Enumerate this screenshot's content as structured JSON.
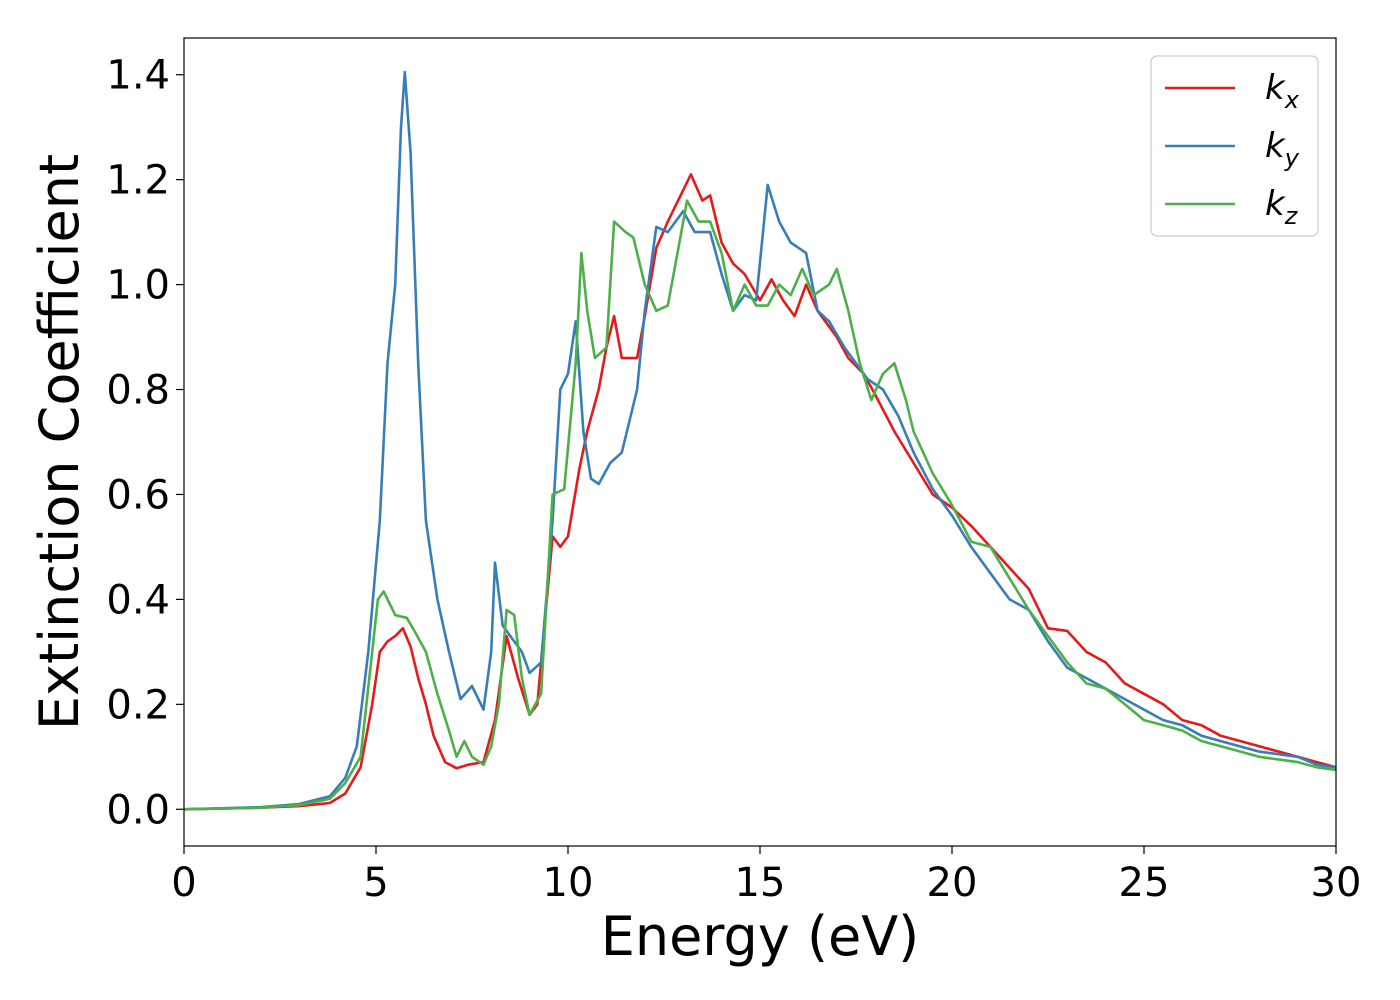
{
  "chart_data": {
    "type": "line",
    "title": "",
    "xlabel": "Energy (eV)",
    "ylabel": "Extinction Coefficient",
    "xlim": [
      0,
      30
    ],
    "ylim": [
      -0.07,
      1.47
    ],
    "xticks": [
      0,
      5,
      10,
      15,
      20,
      25,
      30
    ],
    "xtick_labels": [
      "0",
      "5",
      "10",
      "15",
      "20",
      "25",
      "30"
    ],
    "yticks": [
      0.0,
      0.2,
      0.4,
      0.6,
      0.8,
      1.0,
      1.2,
      1.4
    ],
    "ytick_labels": [
      "0.0",
      "0.2",
      "0.4",
      "0.6",
      "0.8",
      "1.0",
      "1.2",
      "1.4"
    ],
    "grid": false,
    "legend": {
      "position": "top-right",
      "entries": [
        {
          "base": "k",
          "sub": "x"
        },
        {
          "base": "k",
          "sub": "y"
        },
        {
          "base": "k",
          "sub": "z"
        }
      ]
    },
    "series": [
      {
        "name": "k_x",
        "color": "#e41a1c",
        "points": [
          [
            0,
            0
          ],
          [
            2,
            0.003
          ],
          [
            3,
            0.006
          ],
          [
            3.8,
            0.012
          ],
          [
            4.2,
            0.03
          ],
          [
            4.6,
            0.08
          ],
          [
            4.9,
            0.2
          ],
          [
            5.1,
            0.3
          ],
          [
            5.3,
            0.32
          ],
          [
            5.5,
            0.33
          ],
          [
            5.7,
            0.345
          ],
          [
            5.9,
            0.31
          ],
          [
            6.1,
            0.25
          ],
          [
            6.3,
            0.2
          ],
          [
            6.5,
            0.14
          ],
          [
            6.8,
            0.09
          ],
          [
            7.1,
            0.078
          ],
          [
            7.4,
            0.085
          ],
          [
            7.8,
            0.09
          ],
          [
            8.1,
            0.17
          ],
          [
            8.4,
            0.33
          ],
          [
            8.7,
            0.25
          ],
          [
            9.0,
            0.18
          ],
          [
            9.2,
            0.2
          ],
          [
            9.6,
            0.52
          ],
          [
            9.8,
            0.5
          ],
          [
            10.0,
            0.52
          ],
          [
            10.3,
            0.65
          ],
          [
            10.5,
            0.72
          ],
          [
            10.8,
            0.8
          ],
          [
            11.0,
            0.88
          ],
          [
            11.2,
            0.94
          ],
          [
            11.4,
            0.86
          ],
          [
            11.8,
            0.86
          ],
          [
            12.0,
            0.94
          ],
          [
            12.3,
            1.07
          ],
          [
            12.6,
            1.12
          ],
          [
            13.0,
            1.18
          ],
          [
            13.2,
            1.21
          ],
          [
            13.5,
            1.16
          ],
          [
            13.7,
            1.17
          ],
          [
            14.0,
            1.08
          ],
          [
            14.3,
            1.04
          ],
          [
            14.6,
            1.02
          ],
          [
            15.0,
            0.97
          ],
          [
            15.3,
            1.01
          ],
          [
            15.6,
            0.97
          ],
          [
            15.9,
            0.94
          ],
          [
            16.2,
            1.0
          ],
          [
            16.5,
            0.95
          ],
          [
            17.0,
            0.9
          ],
          [
            17.3,
            0.86
          ],
          [
            17.7,
            0.83
          ],
          [
            18.0,
            0.79
          ],
          [
            18.5,
            0.72
          ],
          [
            19.0,
            0.66
          ],
          [
            19.5,
            0.6
          ],
          [
            20.0,
            0.575
          ],
          [
            20.5,
            0.54
          ],
          [
            21.0,
            0.5
          ],
          [
            21.5,
            0.46
          ],
          [
            22.0,
            0.42
          ],
          [
            22.5,
            0.345
          ],
          [
            23.0,
            0.34
          ],
          [
            23.5,
            0.3
          ],
          [
            24.0,
            0.28
          ],
          [
            24.5,
            0.24
          ],
          [
            25.0,
            0.22
          ],
          [
            25.5,
            0.2
          ],
          [
            26.0,
            0.17
          ],
          [
            26.5,
            0.16
          ],
          [
            27.0,
            0.14
          ],
          [
            28.0,
            0.12
          ],
          [
            29.0,
            0.1
          ],
          [
            29.5,
            0.09
          ],
          [
            30.0,
            0.08
          ]
        ]
      },
      {
        "name": "k_y",
        "color": "#377eb8",
        "points": [
          [
            0,
            0
          ],
          [
            2,
            0.004
          ],
          [
            3,
            0.01
          ],
          [
            3.8,
            0.025
          ],
          [
            4.2,
            0.06
          ],
          [
            4.5,
            0.12
          ],
          [
            4.8,
            0.3
          ],
          [
            5.1,
            0.55
          ],
          [
            5.3,
            0.85
          ],
          [
            5.5,
            1.0
          ],
          [
            5.65,
            1.3
          ],
          [
            5.75,
            1.405
          ],
          [
            5.9,
            1.25
          ],
          [
            6.1,
            0.85
          ],
          [
            6.3,
            0.55
          ],
          [
            6.6,
            0.4
          ],
          [
            6.9,
            0.3
          ],
          [
            7.2,
            0.21
          ],
          [
            7.5,
            0.235
          ],
          [
            7.8,
            0.19
          ],
          [
            8.0,
            0.3
          ],
          [
            8.1,
            0.47
          ],
          [
            8.3,
            0.35
          ],
          [
            8.6,
            0.32
          ],
          [
            8.8,
            0.3
          ],
          [
            9.0,
            0.26
          ],
          [
            9.3,
            0.28
          ],
          [
            9.6,
            0.55
          ],
          [
            9.8,
            0.8
          ],
          [
            10.0,
            0.83
          ],
          [
            10.2,
            0.93
          ],
          [
            10.4,
            0.72
          ],
          [
            10.6,
            0.63
          ],
          [
            10.8,
            0.62
          ],
          [
            11.1,
            0.66
          ],
          [
            11.4,
            0.68
          ],
          [
            11.8,
            0.8
          ],
          [
            12.0,
            0.95
          ],
          [
            12.3,
            1.11
          ],
          [
            12.6,
            1.1
          ],
          [
            13.0,
            1.14
          ],
          [
            13.3,
            1.1
          ],
          [
            13.7,
            1.1
          ],
          [
            14.0,
            1.02
          ],
          [
            14.3,
            0.95
          ],
          [
            14.6,
            0.98
          ],
          [
            14.9,
            0.97
          ],
          [
            15.2,
            1.19
          ],
          [
            15.5,
            1.12
          ],
          [
            15.8,
            1.08
          ],
          [
            16.2,
            1.06
          ],
          [
            16.5,
            0.95
          ],
          [
            16.8,
            0.93
          ],
          [
            17.2,
            0.88
          ],
          [
            17.5,
            0.85
          ],
          [
            17.8,
            0.82
          ],
          [
            18.2,
            0.8
          ],
          [
            18.6,
            0.75
          ],
          [
            19.0,
            0.68
          ],
          [
            19.5,
            0.61
          ],
          [
            20.0,
            0.56
          ],
          [
            20.5,
            0.5
          ],
          [
            21.0,
            0.45
          ],
          [
            21.5,
            0.4
          ],
          [
            22.0,
            0.38
          ],
          [
            22.5,
            0.32
          ],
          [
            23.0,
            0.27
          ],
          [
            23.5,
            0.25
          ],
          [
            24.0,
            0.23
          ],
          [
            24.5,
            0.21
          ],
          [
            25.0,
            0.19
          ],
          [
            25.5,
            0.17
          ],
          [
            26.0,
            0.16
          ],
          [
            26.5,
            0.14
          ],
          [
            27.0,
            0.13
          ],
          [
            28.0,
            0.11
          ],
          [
            29.0,
            0.1
          ],
          [
            29.5,
            0.085
          ],
          [
            30.0,
            0.08
          ]
        ]
      },
      {
        "name": "k_z",
        "color": "#4daf4a",
        "points": [
          [
            0,
            0
          ],
          [
            2,
            0.003
          ],
          [
            3,
            0.008
          ],
          [
            3.8,
            0.02
          ],
          [
            4.2,
            0.05
          ],
          [
            4.6,
            0.1
          ],
          [
            4.9,
            0.3
          ],
          [
            5.05,
            0.4
          ],
          [
            5.2,
            0.415
          ],
          [
            5.5,
            0.37
          ],
          [
            5.8,
            0.365
          ],
          [
            6.0,
            0.34
          ],
          [
            6.3,
            0.3
          ],
          [
            6.6,
            0.22
          ],
          [
            6.9,
            0.15
          ],
          [
            7.1,
            0.1
          ],
          [
            7.3,
            0.13
          ],
          [
            7.5,
            0.1
          ],
          [
            7.8,
            0.085
          ],
          [
            8.0,
            0.12
          ],
          [
            8.2,
            0.2
          ],
          [
            8.4,
            0.38
          ],
          [
            8.6,
            0.37
          ],
          [
            8.8,
            0.25
          ],
          [
            9.0,
            0.18
          ],
          [
            9.3,
            0.22
          ],
          [
            9.6,
            0.6
          ],
          [
            9.9,
            0.61
          ],
          [
            10.2,
            0.85
          ],
          [
            10.35,
            1.06
          ],
          [
            10.5,
            0.95
          ],
          [
            10.7,
            0.86
          ],
          [
            11.0,
            0.88
          ],
          [
            11.2,
            1.12
          ],
          [
            11.5,
            1.1
          ],
          [
            11.7,
            1.09
          ],
          [
            12.0,
            1.0
          ],
          [
            12.3,
            0.95
          ],
          [
            12.6,
            0.96
          ],
          [
            12.9,
            1.08
          ],
          [
            13.1,
            1.16
          ],
          [
            13.4,
            1.12
          ],
          [
            13.7,
            1.12
          ],
          [
            14.0,
            1.06
          ],
          [
            14.3,
            0.95
          ],
          [
            14.6,
            1.0
          ],
          [
            14.9,
            0.96
          ],
          [
            15.2,
            0.96
          ],
          [
            15.5,
            1.0
          ],
          [
            15.8,
            0.98
          ],
          [
            16.1,
            1.03
          ],
          [
            16.4,
            0.98
          ],
          [
            16.8,
            1.0
          ],
          [
            17.0,
            1.03
          ],
          [
            17.3,
            0.95
          ],
          [
            17.6,
            0.85
          ],
          [
            17.9,
            0.78
          ],
          [
            18.2,
            0.83
          ],
          [
            18.5,
            0.85
          ],
          [
            18.8,
            0.78
          ],
          [
            19.0,
            0.72
          ],
          [
            19.5,
            0.64
          ],
          [
            20.0,
            0.58
          ],
          [
            20.5,
            0.51
          ],
          [
            21.0,
            0.5
          ],
          [
            21.5,
            0.44
          ],
          [
            22.0,
            0.38
          ],
          [
            22.5,
            0.33
          ],
          [
            23.0,
            0.28
          ],
          [
            23.5,
            0.24
          ],
          [
            24.0,
            0.23
          ],
          [
            24.5,
            0.2
          ],
          [
            25.0,
            0.17
          ],
          [
            25.5,
            0.16
          ],
          [
            26.0,
            0.15
          ],
          [
            26.5,
            0.13
          ],
          [
            27.0,
            0.12
          ],
          [
            28.0,
            0.1
          ],
          [
            29.0,
            0.09
          ],
          [
            29.5,
            0.08
          ],
          [
            30.0,
            0.075
          ]
        ]
      }
    ]
  }
}
